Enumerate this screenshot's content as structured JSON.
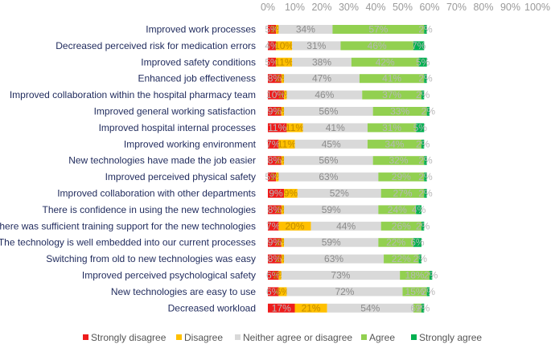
{
  "chart_data": {
    "type": "bar",
    "orientation": "horizontal",
    "stacked": "100%",
    "xlim": [
      0,
      100
    ],
    "x_ticks": [
      "0%",
      "10%",
      "20%",
      "30%",
      "40%",
      "50%",
      "60%",
      "70%",
      "80%",
      "90%",
      "100%"
    ],
    "categories": [
      "Improved work processes",
      "Decreased perceived risk for medication errors",
      "Improved safety conditions",
      "Enhanced  job effectiveness",
      "Improved collaboration within the hospital pharmacy team",
      "Improved general working satisfaction",
      "Improved hospital internal processes",
      "Improved working environment",
      "New technologies have made the job easier",
      "Improved perceived physical safety",
      "Improved collaboration with other departments",
      "There is confidence in using the new technologies",
      "There was sufficient training support for the new technologies",
      "The technology is well embedded into our current processes",
      "Switching from old to new technologies was easy",
      "Improved perceived psychological safety",
      "New technologies are easy to use",
      "Decreased workload"
    ],
    "series": [
      {
        "name": "Strongly disagree",
        "color": "#ee1c1c",
        "values": [
          3,
          3,
          3,
          5,
          6,
          5,
          7,
          4,
          5,
          3,
          6,
          5,
          4,
          5,
          5,
          4,
          4,
          10
        ]
      },
      {
        "name": "Disagree",
        "color": "#ffc000",
        "values": [
          1,
          6,
          6,
          1,
          1,
          1,
          6,
          6,
          1,
          1,
          5,
          1,
          12,
          1,
          1,
          1,
          3,
          12
        ]
      },
      {
        "name": "Neither agree or disagree",
        "color": "#d9d9d9",
        "values": [
          20,
          18,
          22,
          28,
          28,
          33,
          24,
          27,
          33,
          37,
          31,
          35,
          26,
          35,
          37,
          44,
          43,
          32
        ]
      },
      {
        "name": "Agree",
        "color": "#92d050",
        "values": [
          34,
          27,
          25,
          24,
          22,
          20,
          18,
          20,
          19,
          17,
          16,
          14,
          15,
          13,
          13,
          11,
          9,
          3
        ]
      },
      {
        "name": "Strongly agree",
        "color": "#00b050",
        "values": [
          1,
          4,
          3,
          1,
          1,
          1,
          3,
          1,
          1,
          1,
          1,
          2,
          1,
          3,
          1,
          1,
          1,
          1
        ]
      }
    ],
    "data_labels": [
      [
        "5%",
        "2%",
        "34%",
        "57%",
        "2%"
      ],
      [
        "4%",
        "10%",
        "31%",
        "46%",
        "7%"
      ],
      [
        "5%",
        "11%",
        "38%",
        "42%",
        "5%"
      ],
      [
        "8%",
        "2%",
        "47%",
        "41%",
        "2%"
      ],
      [
        "10%",
        "2%",
        "46%",
        "37%",
        "2%"
      ],
      [
        "9%",
        "2%",
        "56%",
        "33%",
        "2%"
      ],
      [
        "11%",
        "11%",
        "41%",
        "31%",
        "5%"
      ],
      [
        "7%",
        "11%",
        "45%",
        "34%",
        "2%"
      ],
      [
        "8%",
        "2%",
        "56%",
        "32%",
        "2%"
      ],
      [
        "5%",
        "2%",
        "63%",
        "29%",
        "2%"
      ],
      [
        "9%",
        "9%",
        "52%",
        "27%",
        "2%"
      ],
      [
        "8%",
        "2%",
        "59%",
        "24%",
        "4%"
      ],
      [
        "7%",
        "20%",
        "44%",
        "26%",
        "2%"
      ],
      [
        "9%",
        "2%",
        "59%",
        "22%",
        "6%"
      ],
      [
        "8%",
        "2%",
        "63%",
        "22%",
        "2%"
      ],
      [
        "6%",
        "2%",
        "73%",
        "18%",
        "2%"
      ],
      [
        "6%",
        "6%",
        "72%",
        "15%",
        "2%"
      ],
      [
        "17%",
        "21%",
        "54%",
        "6%",
        "2%"
      ]
    ],
    "legend": {
      "position": "bottom"
    }
  }
}
